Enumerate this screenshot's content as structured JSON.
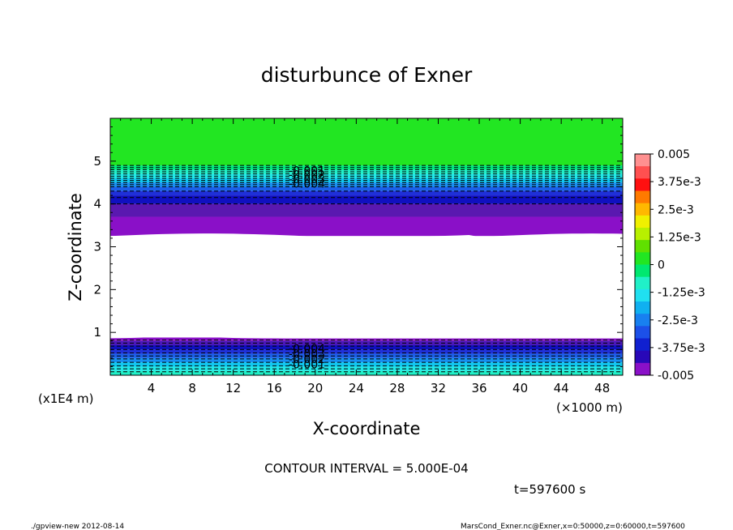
{
  "chart_data": {
    "type": "heatmap",
    "title": "disturbunce of Exner",
    "xlabel": "X-coordinate",
    "ylabel": "Z-coordinate",
    "x_unit": "(×1000 m)",
    "y_unit": "(x1E4 m)",
    "xlim": [
      0,
      50
    ],
    "ylim": [
      0,
      6
    ],
    "x_ticks": [
      "4",
      "8",
      "12",
      "16",
      "20",
      "24",
      "28",
      "32",
      "36",
      "40",
      "44",
      "48"
    ],
    "y_ticks": [
      "1",
      "2",
      "3",
      "4",
      "5"
    ],
    "colorbar": {
      "labels": [
        "0.005",
        "3.75e-3",
        "2.5e-3",
        "1.25e-3",
        "0",
        "-1.25e-3",
        "-2.5e-3",
        "-3.75e-3",
        "-0.005"
      ],
      "min": -0.005,
      "max": 0.005,
      "interval": 0.0005
    },
    "contour_labels_upper": [
      "-0.001",
      "-0.002",
      "-0.003",
      "-0.004"
    ],
    "contour_labels_lower": [
      "-0.004",
      "-0.003",
      "-0.002",
      "-0.001"
    ],
    "bands": [
      {
        "z": [
          4.9,
          6.0
        ],
        "level": 0.0,
        "color": "#22e622"
      },
      {
        "z": [
          4.8,
          4.9
        ],
        "level": -0.0005,
        "color": "#00e87e"
      },
      {
        "z": [
          4.7,
          4.8
        ],
        "level": -0.001,
        "color": "#20f0c8"
      },
      {
        "z": [
          4.6,
          4.7
        ],
        "level": -0.0015,
        "color": "#20e8e8"
      },
      {
        "z": [
          4.5,
          4.6
        ],
        "level": -0.002,
        "color": "#10c8f0"
      },
      {
        "z": [
          4.4,
          4.5
        ],
        "level": -0.0025,
        "color": "#1890f0"
      },
      {
        "z": [
          4.3,
          4.4
        ],
        "level": -0.003,
        "color": "#1c60e8"
      },
      {
        "z": [
          4.2,
          4.3
        ],
        "level": -0.0035,
        "color": "#1f30d8"
      },
      {
        "z": [
          4.0,
          4.2
        ],
        "level": -0.004,
        "color": "#1010c0"
      },
      {
        "z": [
          3.7,
          4.0
        ],
        "level": -0.0045,
        "color": "#5a18b0"
      },
      {
        "z": [
          3.25,
          3.7
        ],
        "level": -0.005,
        "color": "#8a10c8"
      },
      {
        "z": [
          0.88,
          3.25
        ],
        "level": null,
        "color": "#ffffff"
      },
      {
        "z": [
          0.8,
          0.88
        ],
        "level": -0.005,
        "color": "#8a10c8"
      },
      {
        "z": [
          0.7,
          0.8
        ],
        "level": -0.0045,
        "color": "#4a18b8"
      },
      {
        "z": [
          0.6,
          0.7
        ],
        "level": -0.004,
        "color": "#1010c0"
      },
      {
        "z": [
          0.5,
          0.6
        ],
        "level": -0.0035,
        "color": "#1f30d8"
      },
      {
        "z": [
          0.4,
          0.5
        ],
        "level": -0.003,
        "color": "#1c60e8"
      },
      {
        "z": [
          0.3,
          0.4
        ],
        "level": -0.0025,
        "color": "#1890f0"
      },
      {
        "z": [
          0.2,
          0.3
        ],
        "level": -0.002,
        "color": "#10c8f0"
      },
      {
        "z": [
          0.1,
          0.2
        ],
        "level": -0.0015,
        "color": "#20e8e8"
      },
      {
        "z": [
          0.0,
          0.1
        ],
        "level": -0.001,
        "color": "#20f0c8"
      }
    ]
  },
  "contour_interval_text": "CONTOUR INTERVAL = 5.000E-04",
  "time_text": "t=597600 s",
  "footer_left": "./gpview-new   2012-08-14",
  "footer_right": "MarsCond_Exner.nc@Exner,x=0:50000,z=0:60000,t=597600",
  "colors": {
    "colorbar": [
      "#ff9090",
      "#ff5050",
      "#ff1010",
      "#ff7a00",
      "#ffb800",
      "#f0f000",
      "#b8f000",
      "#60e000",
      "#22e622",
      "#00e870",
      "#20f0c8",
      "#20e0f0",
      "#10b0f0",
      "#1880f0",
      "#1c50e8",
      "#1020d0",
      "#2808b8",
      "#8a10c8"
    ]
  }
}
